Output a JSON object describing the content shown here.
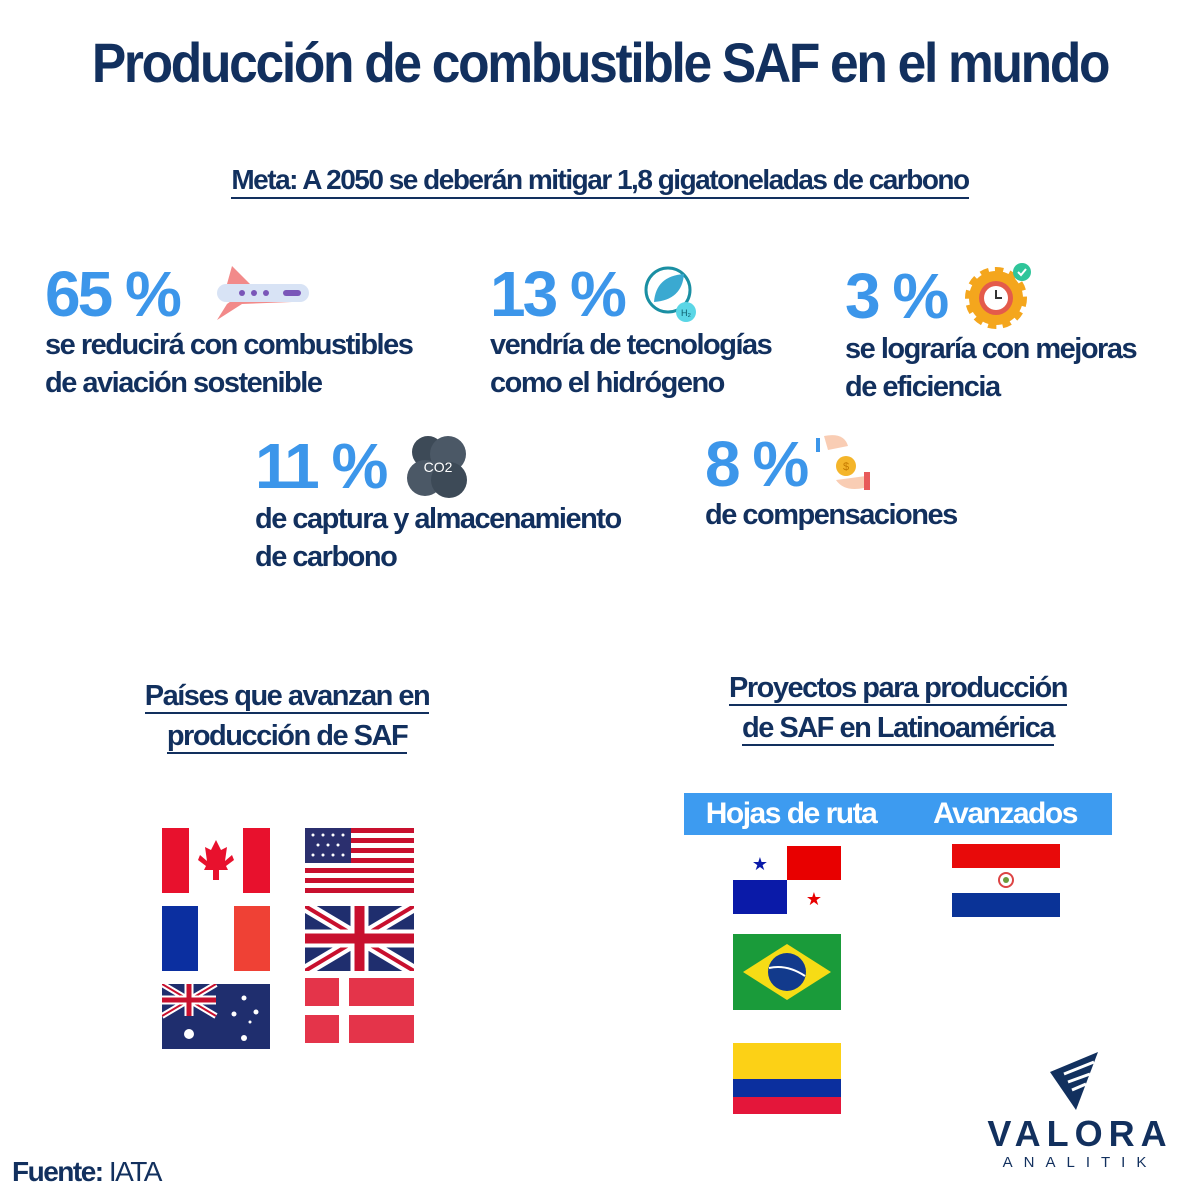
{
  "title": "Producción de combustible SAF en el mundo",
  "goal": "Meta: A 2050 se deberán mitigar 1,8 gigatoneladas de carbono",
  "stats": [
    {
      "value": "65 %",
      "line1": "se reducirá con combustibles",
      "line2": "de aviación sostenible",
      "icon": "airplane-icon"
    },
    {
      "value": "13 %",
      "line1": "vendría de tecnologías",
      "line2": "como el hidrógeno",
      "icon": "hydrogen-leaf-icon",
      "icon_label": "H₂"
    },
    {
      "value": "3 %",
      "line1": "se lograría con mejoras",
      "line2": "de eficiencia",
      "icon": "gear-clock-icon"
    },
    {
      "value": "11 %",
      "line1": "de captura y almacenamiento",
      "line2": "de carbono",
      "icon": "co2-cloud-icon",
      "icon_label": "CO2"
    },
    {
      "value": "8 %",
      "line1": "de compensaciones",
      "line2": "",
      "icon": "coin-hands-icon"
    }
  ],
  "countries": {
    "heading_line1": "Países que avanzan en",
    "heading_line2": "producción de SAF",
    "flags": [
      "Canada",
      "United States",
      "France",
      "United Kingdom",
      "Australia",
      "Denmark"
    ]
  },
  "latam": {
    "heading_line1": "Proyectos para producción",
    "heading_line2": "de SAF en Latinoamérica",
    "col1": "Hojas de ruta",
    "col2": "Avanzados",
    "roadmap_flags": [
      "Panama",
      "Brazil",
      "Colombia"
    ],
    "advanced_flags": [
      "Paraguay"
    ]
  },
  "source_label": "Fuente:",
  "source": "IATA",
  "logo": {
    "name": "VALORA",
    "sub": "ANALITIK"
  },
  "colors": {
    "navy": "#12305e",
    "accent": "#3c96ea",
    "bar": "#3d9bf0"
  }
}
